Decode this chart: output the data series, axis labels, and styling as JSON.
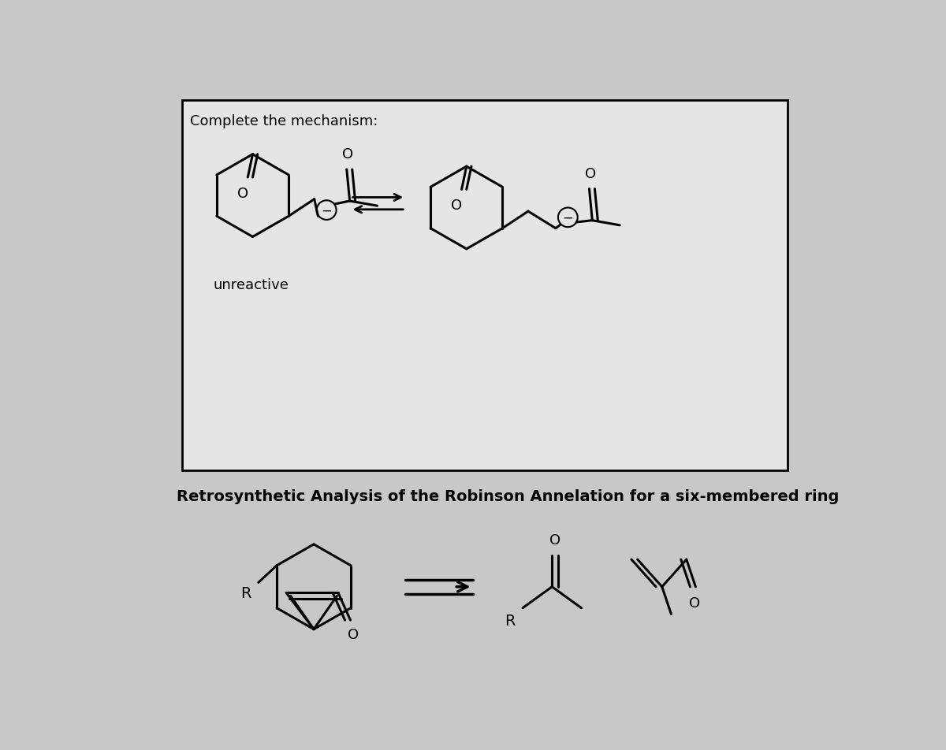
{
  "bg_color": "#c8c8c8",
  "box_facecolor": "#e0e0e0",
  "box_edgecolor": "#000000",
  "text_color": "#000000",
  "title_top": "Complete the mechanism:",
  "label_unreactive": "unreactive",
  "title_bottom": "Retrosynthetic Analysis of the Robinson Annelation for a six-membered ring",
  "label_R1": "R",
  "label_R2": "R",
  "lw": 2.2
}
